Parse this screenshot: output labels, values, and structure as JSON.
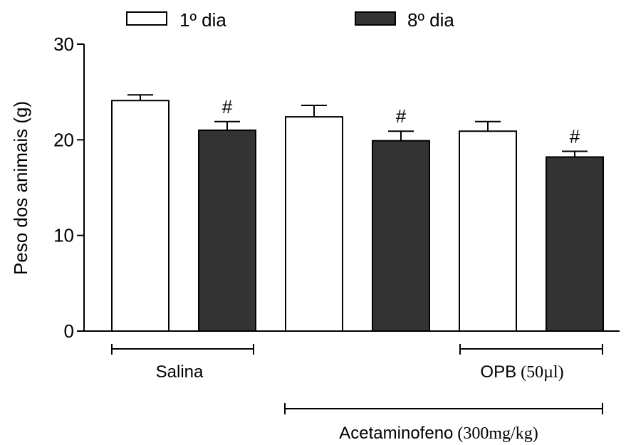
{
  "chart_data": {
    "type": "bar",
    "ylabel": "Peso dos animais (g)",
    "ylim": [
      0,
      30
    ],
    "yticks": [
      0,
      10,
      20,
      30
    ],
    "series": [
      {
        "name": "1º dia",
        "color": "#ffffff",
        "values": [
          24.1,
          22.4,
          20.9
        ],
        "errors": [
          0.6,
          1.2,
          1.0
        ],
        "annotations": [
          "",
          "",
          ""
        ]
      },
      {
        "name": "8º dia",
        "color": "#333333",
        "values": [
          21.0,
          19.9,
          18.2
        ],
        "errors": [
          0.9,
          1.0,
          0.6
        ],
        "annotations": [
          "#",
          "#",
          "#"
        ]
      }
    ],
    "groups": [
      {
        "label_sans": "Salina",
        "label_serif": ""
      },
      {
        "label_sans": "Acetaminofeno",
        "label_serif": "(300mg/kg)"
      },
      {
        "label_sans": "OPB",
        "label_serif": "(50µl)"
      }
    ],
    "legend_position": "top"
  }
}
